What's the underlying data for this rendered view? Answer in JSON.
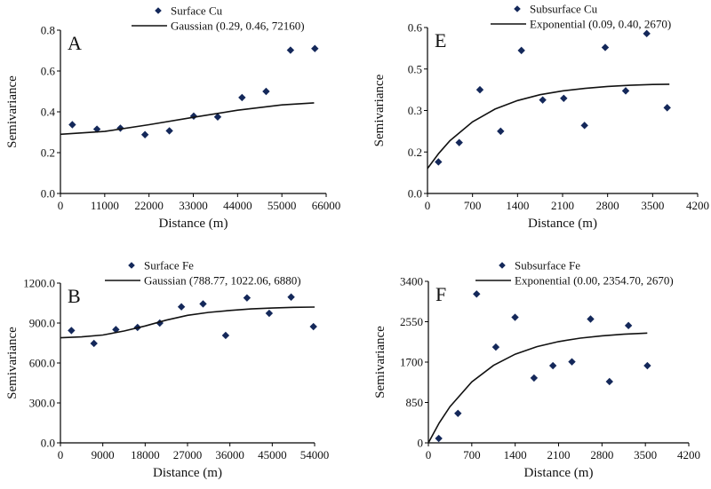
{
  "chart_data": [
    {
      "panel": "A",
      "type": "scatter",
      "xlabel": "Distance (m)",
      "ylabel": "Semivariance",
      "xlim": [
        0,
        66000
      ],
      "ylim": [
        0,
        0.8
      ],
      "xticks": [
        0,
        11000,
        22000,
        33000,
        44000,
        55000,
        66000
      ],
      "xtick_labels": [
        "0",
        "11000",
        "22000",
        "33000",
        "44000",
        "55000",
        "66000"
      ],
      "yticks": [
        0,
        0.2,
        0.4,
        0.6,
        0.8
      ],
      "ytick_labels": [
        "0.0",
        "0.2",
        "0.4",
        "0.6",
        "0.8"
      ],
      "legend_position": "top",
      "series": [
        {
          "name": "Surface Cu",
          "kind": "points",
          "x": [
            2950,
            9070,
            14890,
            21000,
            27060,
            33100,
            39060,
            45100,
            51080,
            57140,
            63190
          ],
          "y": [
            0.337,
            0.315,
            0.32,
            0.288,
            0.307,
            0.379,
            0.375,
            0.47,
            0.5,
            0.702,
            0.71
          ]
        },
        {
          "name": "Gaussian (0.29, 0.46, 72160)",
          "kind": "line",
          "x": [
            0,
            11000,
            22000,
            33000,
            44000,
            55000,
            63000
          ],
          "y": [
            0.29,
            0.304,
            0.337,
            0.373,
            0.408,
            0.434,
            0.444
          ]
        }
      ]
    },
    {
      "panel": "E",
      "type": "scatter",
      "xlabel": "Distance (m)",
      "ylabel": "Semivariance",
      "xlim": [
        0,
        4200
      ],
      "ylim": [
        0,
        0.6
      ],
      "xticks": [
        0,
        700,
        1400,
        2100,
        2800,
        3500,
        4200
      ],
      "xtick_labels": [
        "0",
        "700",
        "1400",
        "2100",
        "2800",
        "3500",
        "4200"
      ],
      "yticks": [
        0,
        0.15,
        0.3,
        0.45,
        0.6
      ],
      "ytick_labels": [
        "0.0",
        "0.2",
        "0.3",
        "0.5",
        "0.6"
      ],
      "legend_position": "top",
      "series": [
        {
          "name": "Subsurface Cu",
          "kind": "points",
          "x": [
            170,
            493,
            815,
            1137,
            1460,
            1791,
            2118,
            2441,
            2763,
            3081,
            3408,
            3726
          ],
          "y": [
            0.114,
            0.184,
            0.375,
            0.225,
            0.517,
            0.338,
            0.344,
            0.246,
            0.528,
            0.371,
            0.578,
            0.31
          ]
        },
        {
          "name": "Exponential (0.09, 0.40, 2670)",
          "kind": "line",
          "x": [
            0,
            175,
            350,
            700,
            1050,
            1400,
            1750,
            2100,
            2450,
            2800,
            3150,
            3500,
            3760
          ],
          "y": [
            0.09,
            0.145,
            0.191,
            0.259,
            0.305,
            0.336,
            0.357,
            0.371,
            0.38,
            0.387,
            0.391,
            0.394,
            0.395
          ]
        }
      ]
    },
    {
      "panel": "B",
      "type": "scatter",
      "xlabel": "Distance (m)",
      "ylabel": "Semivariance",
      "xlim": [
        0,
        54000
      ],
      "ylim": [
        0,
        1200
      ],
      "xticks": [
        0,
        9000,
        18000,
        27000,
        36000,
        45000,
        54000
      ],
      "xtick_labels": [
        "0",
        "9000",
        "18000",
        "27000",
        "36000",
        "45000",
        "54000"
      ],
      "yticks": [
        0,
        300,
        600,
        900,
        1200
      ],
      "ytick_labels": [
        "0.0",
        "300.0",
        "600.0",
        "900.0",
        "1200.0"
      ],
      "legend_position": "top",
      "series": [
        {
          "name": "Surface Fe",
          "kind": "points",
          "x": [
            2330,
            7120,
            11780,
            16380,
            21100,
            25700,
            30300,
            35100,
            39630,
            44350,
            49010,
            53750
          ],
          "y": [
            844,
            747,
            851,
            867,
            900,
            1022,
            1044,
            807,
            1089,
            973,
            1095,
            873
          ]
        },
        {
          "name": "Gaussian (788.77, 1022.06, 6880)",
          "kind": "line",
          "x": [
            0,
            4500,
            9000,
            13500,
            18000,
            22500,
            27000,
            31500,
            36000,
            40500,
            45000,
            49500,
            54000
          ],
          "y": [
            789,
            796,
            810,
            840,
            878,
            922,
            958,
            980,
            995,
            1006,
            1013,
            1018,
            1020
          ]
        }
      ]
    },
    {
      "panel": "F",
      "type": "scatter",
      "xlabel": "Distance (m)",
      "ylabel": "Semivariance",
      "xlim": [
        0,
        4200
      ],
      "ylim": [
        0,
        3400
      ],
      "xticks": [
        0,
        700,
        1400,
        2100,
        2800,
        3500,
        4200
      ],
      "xtick_labels": [
        "0",
        "700",
        "1400",
        "2100",
        "2800",
        "3500",
        "4200"
      ],
      "yticks": [
        0,
        850,
        1700,
        2550,
        3400
      ],
      "ytick_labels": [
        "0",
        "850",
        "1700",
        "2550",
        "3400"
      ],
      "legend_position": "top",
      "series": [
        {
          "name": "Subsurface Fe",
          "kind": "points",
          "x": [
            167,
            477,
            778,
            1088,
            1398,
            1704,
            2009,
            2315,
            2616,
            2921,
            3227,
            3532
          ],
          "y": [
            93,
            620,
            3133,
            2016,
            2643,
            1365,
            1625,
            1706,
            2606,
            1290,
            2469,
            1625
          ]
        },
        {
          "name": "Exponential (0.00, 2354.70, 2670)",
          "kind": "line",
          "x": [
            0,
            175,
            350,
            700,
            1050,
            1400,
            1750,
            2100,
            2450,
            2800,
            3150,
            3500,
            3530
          ],
          "y": [
            0,
            420,
            765,
            1282,
            1631,
            1866,
            2025,
            2132,
            2205,
            2253,
            2286,
            2309,
            2311
          ]
        }
      ]
    }
  ],
  "colors": {
    "marker": "#14285a",
    "line": "#111111",
    "axis": "#000000"
  }
}
